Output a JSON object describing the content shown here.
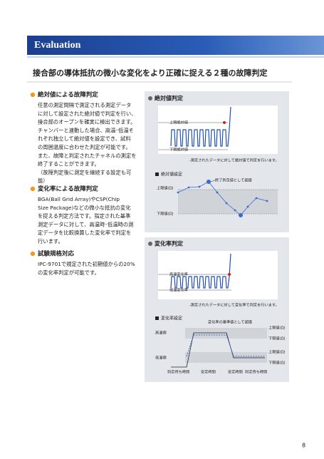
{
  "header": {
    "title": "Evaluation"
  },
  "headline": "接合部の導体抵抗の微小な変化をより正確に捉える２種の故障判定",
  "sections": [
    {
      "heading": "絶対値による故障判定",
      "lines": [
        "任意の測定間隔で測定される測定データ",
        "に対して設定された絶対値で判定を行い、",
        "接合部のオープンを確実に検出できます。",
        "チャンバーと連動した場合、高温･低温そ",
        "れぞれ独立して絶対値を設定でき、試料",
        "の周囲温度に合わせた判定が可能です。",
        "また、故障と判定されたチャネルの測定を",
        "終了することができます。",
        "（故障判定後に測定を継続する設定も可",
        "能）"
      ]
    },
    {
      "heading": "変化率による故障判定",
      "lines": [
        "BGA(Ball Grid Array)やCSP(Chip",
        "Size Package)などの微小な抵抗の変化",
        "を捉える判定方法です。指定された基準",
        "測定データに対して、高温時･低温時の測",
        "定データを比較換算した変化率で判定を",
        "行います。"
      ]
    },
    {
      "heading": "試験規格対応",
      "lines": [
        "IPC-9701で規定された初期値からの20%",
        "の変化率判定が可能です。"
      ]
    }
  ],
  "panels": [
    {
      "title": "絶対値判定",
      "graph_labels": [
        "上限絶対値",
        "下限絶対値"
      ],
      "caption": "-測定されたデータに対して絶対値で判定を行います。",
      "setting_title": "絶対値設定",
      "annotation": "終了判定値として認識",
      "setting_labels": [
        "上限値(Ω)",
        "下限値(Ω)"
      ]
    },
    {
      "title": "変化率判定",
      "graph_labels": [
        "高温変化率",
        "低温変化率"
      ],
      "caption": "-測定されたデータに対して変化率で判定を行います。",
      "setting_title": "変化率設定",
      "annotation": "変化率の基準値として認識",
      "side_labels": [
        "高温側",
        "低温側"
      ],
      "setting_labels": [
        "上限値(Ω)",
        "下限値(Ω)",
        "上限値(Ω)",
        "下限値(Ω)"
      ],
      "time_labels": [
        "判定待ち時間",
        "安定時間",
        "安定時間",
        "判定待ち時間"
      ]
    }
  ],
  "page_number": "8"
}
